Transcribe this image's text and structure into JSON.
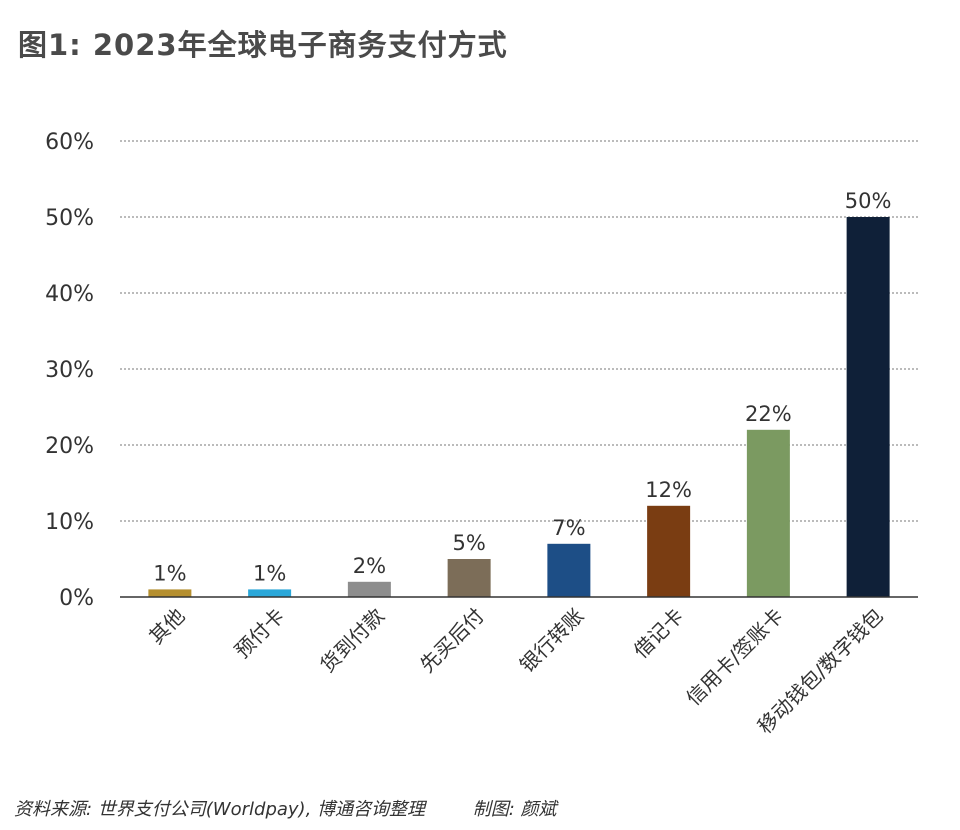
{
  "title": "图1: 2023年全球电子商务支付方式",
  "chart_data": {
    "type": "bar",
    "categories": [
      "其他",
      "预付卡",
      "货到付款",
      "先买后付",
      "银行转账",
      "借记卡",
      "信用卡/签账卡",
      "移动钱包/数字钱包"
    ],
    "values": [
      1,
      1,
      2,
      5,
      7,
      12,
      22,
      50
    ],
    "value_labels": [
      "1%",
      "1%",
      "2%",
      "5%",
      "7%",
      "12%",
      "22%",
      "50%"
    ],
    "colors": [
      "#b58f2f",
      "#2aa7d9",
      "#8d8d8d",
      "#7c6d58",
      "#1d4e86",
      "#7a3d12",
      "#7b9a61",
      "#0f2038"
    ],
    "ylim": [
      0,
      60
    ],
    "y_ticks": [
      0,
      10,
      20,
      30,
      40,
      50,
      60
    ],
    "y_tick_labels": [
      "0%",
      "10%",
      "20%",
      "30%",
      "40%",
      "50%",
      "60%"
    ],
    "grid": true,
    "xlabel": "",
    "ylabel": ""
  },
  "footer": {
    "source": "资料来源: 世界支付公司(Worldpay), 博通咨询整理",
    "credit": "制图: 颜斌"
  }
}
